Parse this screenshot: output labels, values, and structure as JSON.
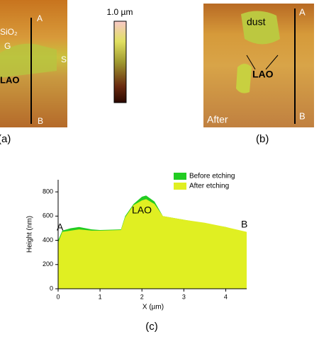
{
  "panels": {
    "a": {
      "label": "(a)",
      "annotations": [
        "A",
        "SiO₂",
        "G",
        "LAO",
        "S",
        "B"
      ]
    },
    "b": {
      "label": "(b)",
      "annotations": [
        "A",
        "dust",
        "LAO",
        "After",
        "B"
      ]
    },
    "colorbar": {
      "label": "1.0 µm"
    }
  },
  "chart_data": {
    "type": "area",
    "label": "(c)",
    "xlabel": "X (µm)",
    "ylabel": "Height (nm)",
    "x": [
      0,
      0.1,
      0.3,
      0.5,
      0.8,
      1.0,
      1.5,
      1.6,
      1.8,
      2.0,
      2.1,
      2.3,
      2.5,
      3.0,
      3.5,
      4.0,
      4.5
    ],
    "series": [
      {
        "name": "Before etching",
        "color": "#22cc22",
        "values": [
          400,
          480,
          500,
          510,
          490,
          485,
          490,
          600,
          700,
          760,
          770,
          720,
          600,
          570,
          540,
          510,
          460
        ]
      },
      {
        "name": "After etching",
        "color": "#e0ef22",
        "values": [
          380,
          470,
          480,
          490,
          480,
          480,
          485,
          590,
          690,
          730,
          740,
          700,
          600,
          570,
          545,
          510,
          470
        ]
      }
    ],
    "xlim": [
      0,
      4.5
    ],
    "ylim": [
      0,
      900
    ],
    "xticks": [
      0,
      1,
      2,
      3,
      4
    ],
    "yticks": [
      0,
      200,
      400,
      600,
      800
    ],
    "annotations": [
      "A",
      "LAO",
      "B"
    ],
    "legend": "top-right"
  }
}
